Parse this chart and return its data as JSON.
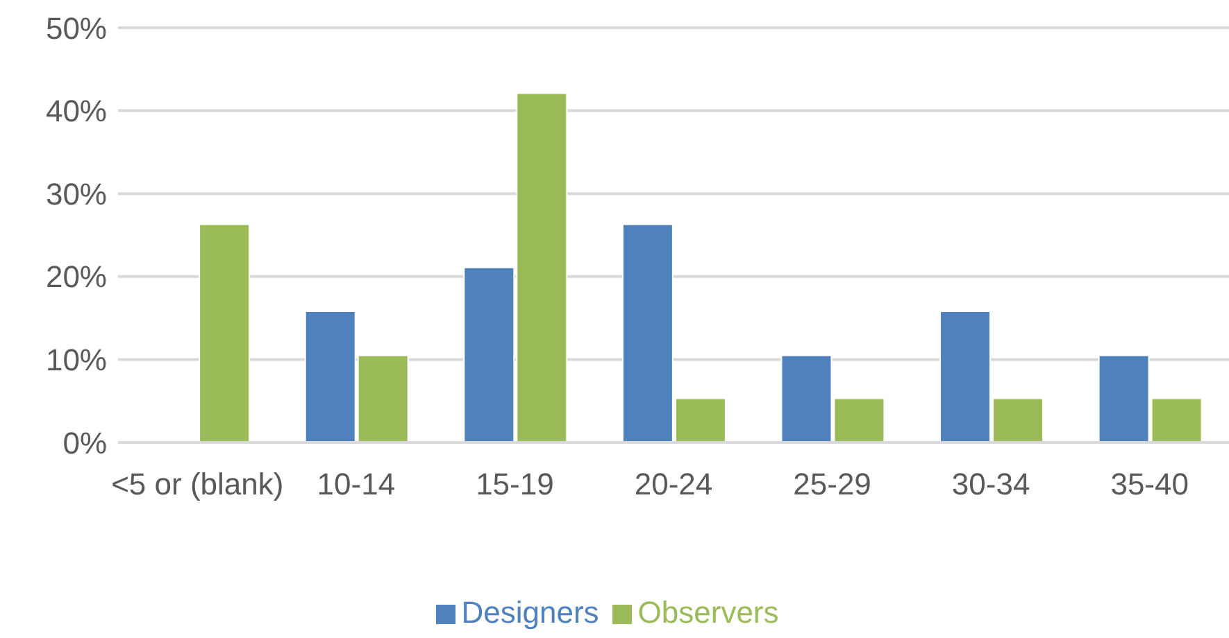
{
  "chart_data": {
    "type": "bar",
    "categories": [
      "<5 or (blank)",
      "10-14",
      "15-19",
      "20-24",
      "25-29",
      "30-34",
      "35-40"
    ],
    "series": [
      {
        "name": "Designers",
        "color": "#4f81bd",
        "values": [
          0,
          15.8,
          21.1,
          26.3,
          10.5,
          15.8,
          10.5
        ]
      },
      {
        "name": "Observers",
        "color": "#9bbb59",
        "values": [
          26.3,
          10.5,
          42.1,
          5.3,
          5.3,
          5.3,
          5.3
        ]
      }
    ],
    "ylim": [
      0,
      50
    ],
    "yticks": [
      {
        "value": 0,
        "label": "0%"
      },
      {
        "value": 10,
        "label": "10%"
      },
      {
        "value": 20,
        "label": "20%"
      },
      {
        "value": 30,
        "label": "30%"
      },
      {
        "value": 40,
        "label": "40%"
      },
      {
        "value": 50,
        "label": "50%"
      }
    ],
    "grid": "y",
    "legend": "bottom"
  }
}
